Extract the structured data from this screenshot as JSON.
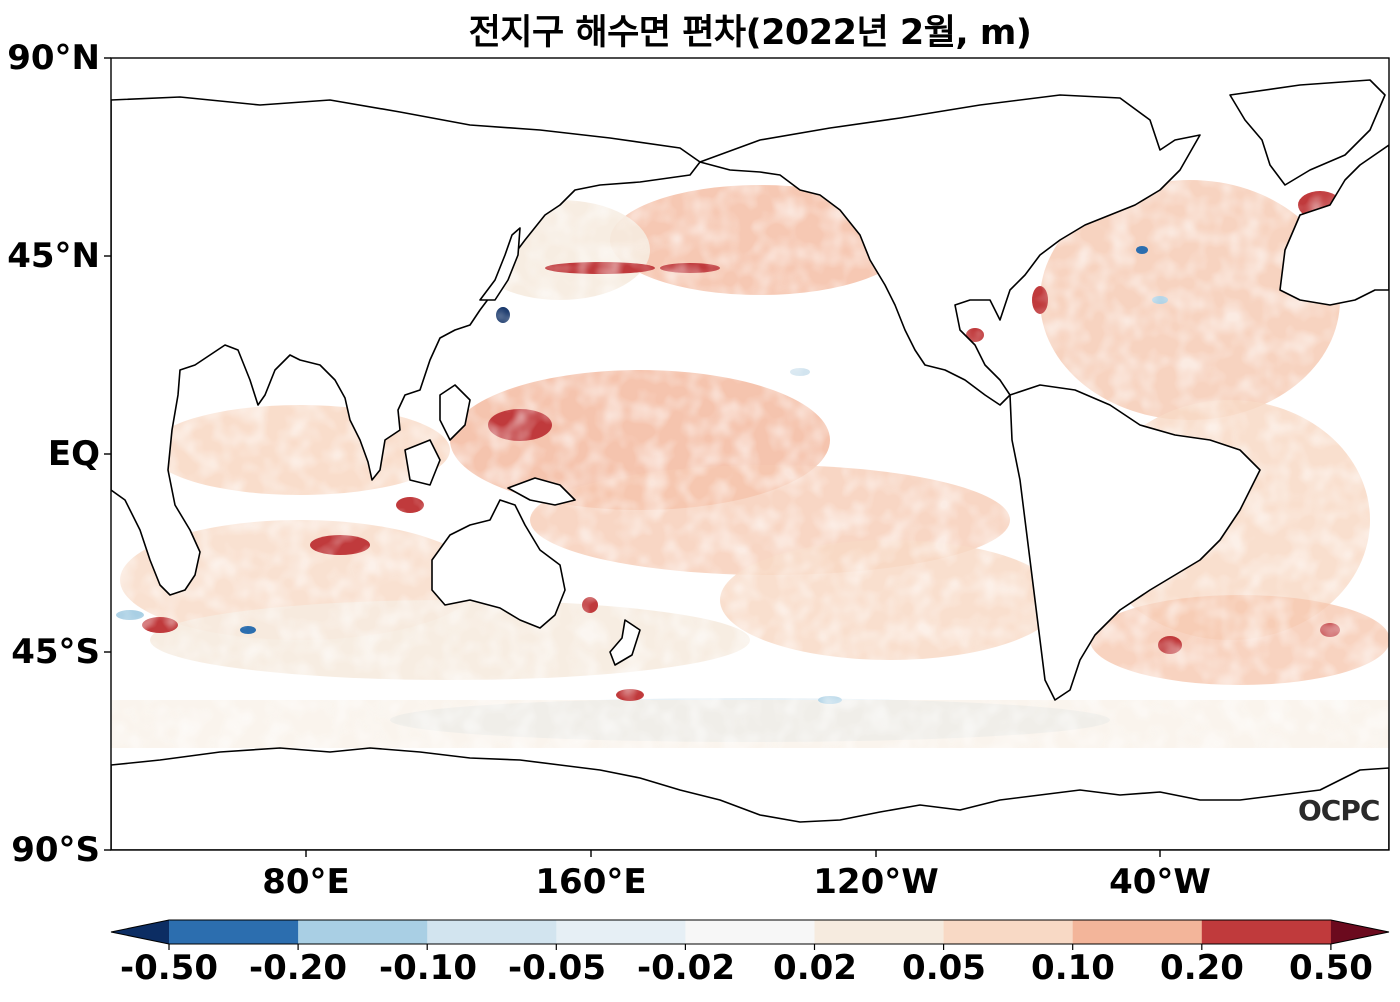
{
  "title": "전지구 해수면 편차(2022년 2월, m)",
  "axes": {
    "y_ticks": [
      "90°N",
      "45°N",
      "EQ",
      "45°S",
      "90°S"
    ],
    "x_ticks": [
      "80°E",
      "160°E",
      "120°W",
      "40°W"
    ]
  },
  "colorbar": {
    "tick_labels": [
      "-0.50",
      "-0.20",
      "-0.10",
      "-0.05",
      "-0.02",
      "0.02",
      "0.05",
      "0.10",
      "0.20",
      "0.50"
    ],
    "colors": [
      "#2c6eaf",
      "#a9cfe4",
      "#d2e4ef",
      "#e6eff5",
      "#f7f7f7",
      "#f6ebdf",
      "#f8d9c5",
      "#f3b59a",
      "#c03a3c"
    ],
    "under_color": "#0c2d63",
    "over_color": "#6b0a1e"
  },
  "logo_text": "OCPC",
  "chart_data": {
    "type": "heatmap",
    "title": "전지구 해수면 편차(2022년 2월, m)",
    "x_ticks": [
      "80°E",
      "160°E",
      "120°W",
      "40°W"
    ],
    "y_ticks": [
      "90°N",
      "45°N",
      "EQ",
      "45°S",
      "90°S"
    ],
    "levels": [
      -0.5,
      -0.2,
      -0.1,
      -0.05,
      -0.02,
      0.02,
      0.05,
      0.1,
      0.2,
      0.5
    ],
    "colorbar_extend": "both",
    "colormap": "RdBu_r"
  }
}
